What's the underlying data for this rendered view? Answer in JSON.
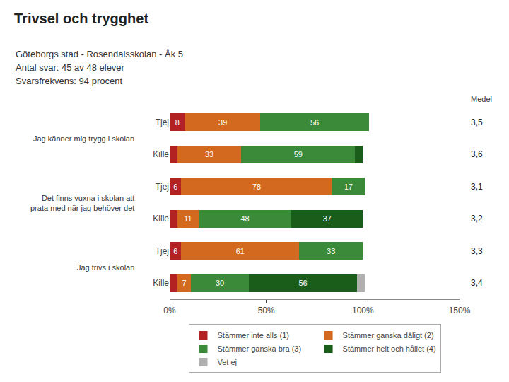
{
  "chart_data": {
    "type": "bar",
    "orientation": "horizontal",
    "stacked": true,
    "title": "Trivsel och trygghet",
    "subtitle": [
      "Göteborgs stad - Rosendalsskolan - Åk 5",
      "Antal svar: 45 av 48 elever",
      "Svarsfrekvens: 94 procent"
    ],
    "categories": [
      "Tjej",
      "Kille",
      "Tjej",
      "Kille",
      "Tjej",
      "Kille"
    ],
    "category_groups": [
      "Jag känner mig trygg i skolan",
      "Jag känner mig trygg i skolan",
      "Det finns vuxna i skolan att\nprata med när jag behöver det",
      "Det finns vuxna i skolan att\nprata med när jag behöver det",
      "Jag trivs i skolan",
      "Jag trivs i skolan"
    ],
    "series": [
      {
        "name": "Stämmer inte alls (1)",
        "color": "#b22222",
        "values": [
          8,
          4,
          6,
          4,
          6,
          4
        ],
        "value_labels": [
          "8",
          null,
          "6",
          null,
          "6",
          null
        ]
      },
      {
        "name": "Stämmer ganska dåligt (2)",
        "color": "#d2691e",
        "values": [
          39,
          33,
          78,
          11,
          61,
          7
        ],
        "value_labels": [
          "39",
          "33",
          "78",
          "11",
          "61",
          "7"
        ]
      },
      {
        "name": "Stämmer ganska bra (3)",
        "color": "#3a8a3a",
        "values": [
          56,
          59,
          17,
          48,
          33,
          30
        ],
        "value_labels": [
          "56",
          "59",
          "17",
          "48",
          "33",
          "30"
        ]
      },
      {
        "name": "Stämmer helt och hållet (4)",
        "color": "#1a5c1a",
        "values": [
          0,
          4,
          0,
          37,
          0,
          56
        ],
        "value_labels": [
          null,
          null,
          null,
          "37",
          null,
          "56"
        ]
      },
      {
        "name": "Vet ej",
        "color": "#b0b0b0",
        "values": [
          0,
          0,
          0,
          0,
          0,
          4
        ],
        "value_labels": [
          null,
          null,
          null,
          null,
          null,
          null
        ]
      }
    ],
    "xlim": [
      0,
      150
    ],
    "xticks": [
      {
        "value": 0,
        "label": "0%"
      },
      {
        "value": 50,
        "label": "50%"
      },
      {
        "value": 100,
        "label": "100%"
      },
      {
        "value": 150,
        "label": "150%"
      }
    ],
    "grid": false,
    "legend": "bottom",
    "data_labels": true,
    "medel": {
      "title": "Medel",
      "values": [
        3.5,
        3.6,
        3.1,
        3.2,
        3.3,
        3.4
      ],
      "value_labels": [
        "3,5",
        "3,6",
        "3,1",
        "3,2",
        "3,3",
        "3,4"
      ]
    }
  }
}
